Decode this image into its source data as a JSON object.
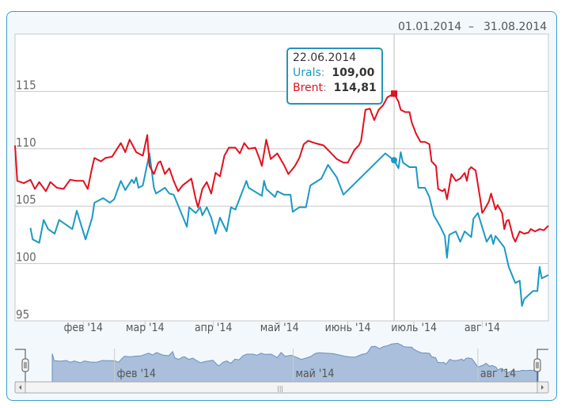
{
  "chart_data": {
    "type": "line",
    "title": "",
    "date_range": {
      "from": "01.01.2014",
      "separator": "–",
      "to": "31.08.2014"
    },
    "xlim": [
      "2014-01-01",
      "2014-08-31"
    ],
    "ylim": [
      95,
      120
    ],
    "y_ticks": [
      95,
      100,
      105,
      110,
      115
    ],
    "grid": true,
    "x_ticks": [
      {
        "date": "2014-02-01",
        "label": "фев '14"
      },
      {
        "date": "2014-03-01",
        "label": "мар '14"
      },
      {
        "date": "2014-04-01",
        "label": "апр '14"
      },
      {
        "date": "2014-05-01",
        "label": "май '14"
      },
      {
        "date": "2014-06-01",
        "label": "июнь '14"
      },
      {
        "date": "2014-07-01",
        "label": "июль '14"
      },
      {
        "date": "2014-08-01",
        "label": "авг '14"
      }
    ],
    "navigator_ticks": [
      {
        "date": "2014-02-01",
        "label": "фев '14"
      },
      {
        "date": "2014-05-01",
        "label": "май '14"
      },
      {
        "date": "2014-08-01",
        "label": "авг '14"
      }
    ],
    "colors": {
      "Urals": "#1b99c4",
      "Brent": "#e3101e",
      "navigator": "#a9bfdb"
    },
    "tooltip": {
      "date": "22.06.2014",
      "rows": [
        {
          "name": "Urals",
          "sep": ":",
          "value": "109,00"
        },
        {
          "name": "Brent",
          "sep": ":",
          "value": "114,81"
        }
      ]
    },
    "series": [
      {
        "name": "Urals",
        "points": [
          [
            "2014-01-08",
            103.1
          ],
          [
            "2014-01-09",
            102.1
          ],
          [
            "2014-01-12",
            101.8
          ],
          [
            "2014-01-14",
            103.8
          ],
          [
            "2014-01-16",
            103.0
          ],
          [
            "2014-01-19",
            102.6
          ],
          [
            "2014-01-21",
            103.8
          ],
          [
            "2014-01-27",
            103.0
          ],
          [
            "2014-01-29",
            104.6
          ],
          [
            "2014-02-02",
            102.1
          ],
          [
            "2014-02-05",
            104.0
          ],
          [
            "2014-02-06",
            105.3
          ],
          [
            "2014-02-10",
            105.7
          ],
          [
            "2014-02-13",
            105.3
          ],
          [
            "2014-02-15",
            105.6
          ],
          [
            "2014-02-18",
            107.2
          ],
          [
            "2014-02-20",
            106.4
          ],
          [
            "2014-02-23",
            107.3
          ],
          [
            "2014-02-24",
            107.0
          ],
          [
            "2014-02-25",
            107.5
          ],
          [
            "2014-02-26",
            106.6
          ],
          [
            "2014-02-28",
            106.8
          ],
          [
            "2014-03-03",
            109.6
          ],
          [
            "2014-03-05",
            106.6
          ],
          [
            "2014-03-06",
            106.1
          ],
          [
            "2014-03-10",
            106.6
          ],
          [
            "2014-03-12",
            106.1
          ],
          [
            "2014-03-14",
            106.0
          ],
          [
            "2014-03-17",
            104.6
          ],
          [
            "2014-03-20",
            103.2
          ],
          [
            "2014-03-21",
            104.9
          ],
          [
            "2014-03-24",
            104.4
          ],
          [
            "2014-03-26",
            104.9
          ],
          [
            "2014-03-27",
            104.2
          ],
          [
            "2014-03-29",
            104.9
          ],
          [
            "2014-03-31",
            104.0
          ],
          [
            "2014-04-02",
            102.6
          ],
          [
            "2014-04-04",
            104.0
          ],
          [
            "2014-04-07",
            102.8
          ],
          [
            "2014-04-09",
            104.9
          ],
          [
            "2014-04-11",
            104.7
          ],
          [
            "2014-04-16",
            107.2
          ],
          [
            "2014-04-17",
            106.6
          ],
          [
            "2014-04-23",
            105.9
          ],
          [
            "2014-04-24",
            107.2
          ],
          [
            "2014-04-25",
            106.5
          ],
          [
            "2014-04-29",
            105.8
          ],
          [
            "2014-04-30",
            106.3
          ],
          [
            "2014-05-03",
            106.0
          ],
          [
            "2014-05-06",
            106.0
          ],
          [
            "2014-05-07",
            104.5
          ],
          [
            "2014-05-10",
            104.9
          ],
          [
            "2014-05-13",
            104.9
          ],
          [
            "2014-05-15",
            106.8
          ],
          [
            "2014-05-20",
            107.4
          ],
          [
            "2014-05-23",
            108.6
          ],
          [
            "2014-05-27",
            107.5
          ],
          [
            "2014-05-30",
            106.0
          ],
          [
            "2014-06-18",
            109.6
          ],
          [
            "2014-06-22",
            109.0
          ],
          [
            "2014-06-24",
            108.3
          ],
          [
            "2014-06-25",
            109.7
          ],
          [
            "2014-06-26",
            108.8
          ],
          [
            "2014-06-29",
            108.4
          ],
          [
            "2014-07-02",
            108.4
          ],
          [
            "2014-07-03",
            106.6
          ],
          [
            "2014-07-06",
            106.6
          ],
          [
            "2014-07-08",
            105.8
          ],
          [
            "2014-07-10",
            104.2
          ],
          [
            "2014-07-13",
            103.2
          ],
          [
            "2014-07-15",
            102.4
          ],
          [
            "2014-07-16",
            100.5
          ],
          [
            "2014-07-17",
            102.5
          ],
          [
            "2014-07-20",
            102.8
          ],
          [
            "2014-07-22",
            101.9
          ],
          [
            "2014-07-24",
            102.8
          ],
          [
            "2014-07-27",
            102.3
          ],
          [
            "2014-07-28",
            103.9
          ],
          [
            "2014-07-30",
            104.4
          ],
          [
            "2014-08-03",
            101.9
          ],
          [
            "2014-08-05",
            102.5
          ],
          [
            "2014-08-06",
            101.7
          ],
          [
            "2014-08-07",
            102.4
          ],
          [
            "2014-08-11",
            101.4
          ],
          [
            "2014-08-13",
            99.7
          ],
          [
            "2014-08-16",
            98.3
          ],
          [
            "2014-08-18",
            98.5
          ],
          [
            "2014-08-19",
            96.3
          ],
          [
            "2014-08-20",
            96.9
          ],
          [
            "2014-08-24",
            97.6
          ],
          [
            "2014-08-26",
            97.6
          ],
          [
            "2014-08-27",
            99.7
          ],
          [
            "2014-08-28",
            98.7
          ],
          [
            "2014-08-31",
            99.0
          ]
        ]
      },
      {
        "name": "Brent",
        "points": [
          [
            "2014-01-01",
            110.3
          ],
          [
            "2014-01-02",
            107.2
          ],
          [
            "2014-01-05",
            107.0
          ],
          [
            "2014-01-08",
            107.3
          ],
          [
            "2014-01-10",
            106.5
          ],
          [
            "2014-01-12",
            107.1
          ],
          [
            "2014-01-15",
            106.3
          ],
          [
            "2014-01-17",
            107.1
          ],
          [
            "2014-01-20",
            106.6
          ],
          [
            "2014-01-23",
            106.5
          ],
          [
            "2014-01-26",
            107.3
          ],
          [
            "2014-01-29",
            107.2
          ],
          [
            "2014-02-01",
            107.2
          ],
          [
            "2014-02-03",
            106.5
          ],
          [
            "2014-02-05",
            108.4
          ],
          [
            "2014-02-06",
            109.2
          ],
          [
            "2014-02-09",
            108.9
          ],
          [
            "2014-02-11",
            109.2
          ],
          [
            "2014-02-14",
            109.3
          ],
          [
            "2014-02-18",
            110.5
          ],
          [
            "2014-02-20",
            109.7
          ],
          [
            "2014-02-22",
            110.8
          ],
          [
            "2014-02-25",
            109.7
          ],
          [
            "2014-02-28",
            109.4
          ],
          [
            "2014-03-02",
            111.2
          ],
          [
            "2014-03-03",
            108.5
          ],
          [
            "2014-03-05",
            107.8
          ],
          [
            "2014-03-07",
            108.8
          ],
          [
            "2014-03-08",
            108.9
          ],
          [
            "2014-03-10",
            107.8
          ],
          [
            "2014-03-12",
            108.3
          ],
          [
            "2014-03-14",
            107.2
          ],
          [
            "2014-03-16",
            106.3
          ],
          [
            "2014-03-18",
            106.8
          ],
          [
            "2014-03-20",
            107.1
          ],
          [
            "2014-03-22",
            107.4
          ],
          [
            "2014-03-24",
            105.6
          ],
          [
            "2014-03-25",
            104.9
          ],
          [
            "2014-03-27",
            106.5
          ],
          [
            "2014-03-29",
            107.1
          ],
          [
            "2014-03-31",
            106.1
          ],
          [
            "2014-04-02",
            107.9
          ],
          [
            "2014-04-04",
            107.6
          ],
          [
            "2014-04-06",
            109.4
          ],
          [
            "2014-04-08",
            110.1
          ],
          [
            "2014-04-11",
            110.1
          ],
          [
            "2014-04-13",
            109.6
          ],
          [
            "2014-04-15",
            110.5
          ],
          [
            "2014-04-17",
            110.0
          ],
          [
            "2014-04-20",
            110.1
          ],
          [
            "2014-04-22",
            109.1
          ],
          [
            "2014-04-23",
            108.5
          ],
          [
            "2014-04-25",
            110.8
          ],
          [
            "2014-04-27",
            109.1
          ],
          [
            "2014-04-30",
            109.6
          ],
          [
            "2014-05-03",
            108.6
          ],
          [
            "2014-05-05",
            107.8
          ],
          [
            "2014-05-08",
            108.5
          ],
          [
            "2014-05-10",
            109.2
          ],
          [
            "2014-05-12",
            110.4
          ],
          [
            "2014-05-14",
            110.7
          ],
          [
            "2014-05-17",
            110.5
          ],
          [
            "2014-05-21",
            110.3
          ],
          [
            "2014-05-24",
            109.7
          ],
          [
            "2014-05-27",
            109.1
          ],
          [
            "2014-05-30",
            108.8
          ],
          [
            "2014-06-01",
            108.8
          ],
          [
            "2014-06-04",
            109.9
          ],
          [
            "2014-06-06",
            110.3
          ],
          [
            "2014-06-07",
            110.7
          ],
          [
            "2014-06-09",
            113.4
          ],
          [
            "2014-06-11",
            113.5
          ],
          [
            "2014-06-13",
            112.5
          ],
          [
            "2014-06-15",
            113.4
          ],
          [
            "2014-06-17",
            113.8
          ],
          [
            "2014-06-19",
            114.5
          ],
          [
            "2014-06-22",
            114.81
          ],
          [
            "2014-06-24",
            114.1
          ],
          [
            "2014-06-25",
            113.4
          ],
          [
            "2014-06-27",
            113.2
          ],
          [
            "2014-06-29",
            113.2
          ],
          [
            "2014-06-30",
            112.3
          ],
          [
            "2014-07-02",
            111.3
          ],
          [
            "2014-07-04",
            110.6
          ],
          [
            "2014-07-06",
            110.6
          ],
          [
            "2014-07-08",
            110.4
          ],
          [
            "2014-07-09",
            108.9
          ],
          [
            "2014-07-11",
            108.5
          ],
          [
            "2014-07-12",
            106.5
          ],
          [
            "2014-07-14",
            106.3
          ],
          [
            "2014-07-15",
            106.5
          ],
          [
            "2014-07-16",
            105.6
          ],
          [
            "2014-07-18",
            107.8
          ],
          [
            "2014-07-20",
            107.2
          ],
          [
            "2014-07-22",
            107.4
          ],
          [
            "2014-07-24",
            107.9
          ],
          [
            "2014-07-25",
            107.2
          ],
          [
            "2014-07-26",
            108.2
          ],
          [
            "2014-07-27",
            108.4
          ],
          [
            "2014-07-29",
            108.1
          ],
          [
            "2014-07-31",
            105.7
          ],
          [
            "2014-08-01",
            104.4
          ],
          [
            "2014-08-02",
            104.7
          ],
          [
            "2014-08-04",
            105.4
          ],
          [
            "2014-08-05",
            106.1
          ],
          [
            "2014-08-07",
            104.7
          ],
          [
            "2014-08-08",
            105.1
          ],
          [
            "2014-08-10",
            104.4
          ],
          [
            "2014-08-11",
            103.0
          ],
          [
            "2014-08-12",
            103.7
          ],
          [
            "2014-08-13",
            103.8
          ],
          [
            "2014-08-15",
            102.3
          ],
          [
            "2014-08-16",
            101.9
          ],
          [
            "2014-08-18",
            102.8
          ],
          [
            "2014-08-20",
            102.6
          ],
          [
            "2014-08-22",
            102.7
          ],
          [
            "2014-08-23",
            103.0
          ],
          [
            "2014-08-25",
            102.8
          ],
          [
            "2014-08-27",
            103.0
          ],
          [
            "2014-08-29",
            102.9
          ],
          [
            "2014-08-31",
            103.3
          ]
        ]
      }
    ],
    "highlight_date": "2014-06-22"
  }
}
